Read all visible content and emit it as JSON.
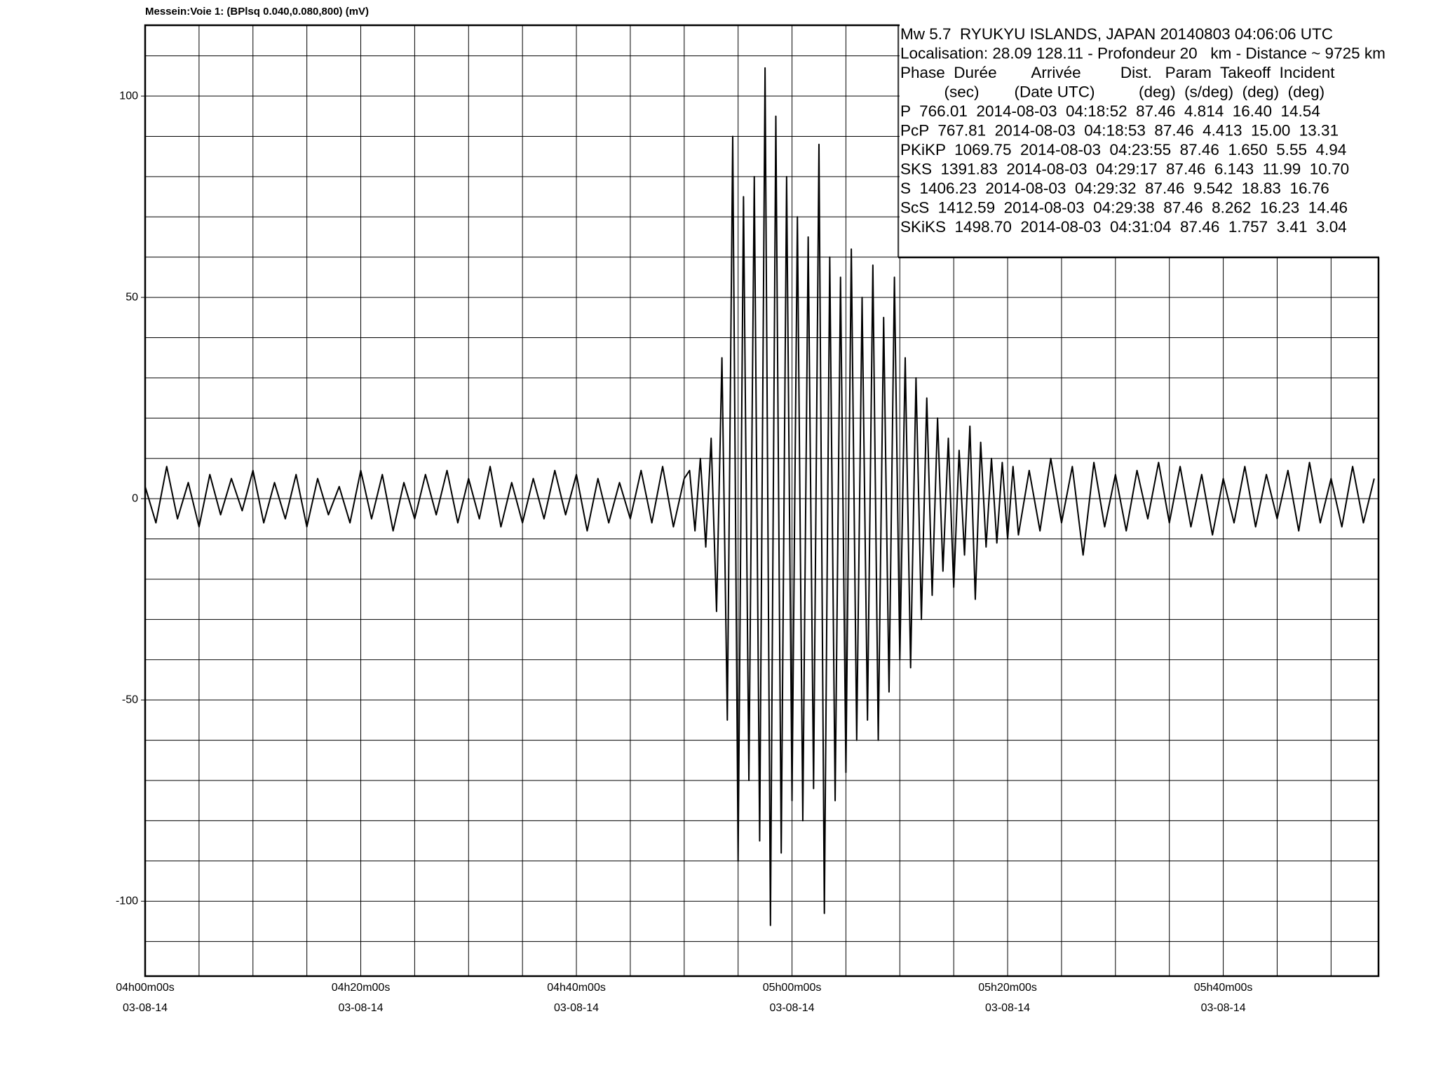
{
  "chart_data": {
    "type": "line",
    "title": "Messein:Voie 1: (BPlsq 0.040,0.080,800) (mV)",
    "annotations": [
      "Mw 5.7  RYUKYU ISLANDS, JAPAN 20140803 04:06:06 UTC",
      "Localisation: 28.09 128.11 - Profondeur 20   km - Distance ~ 9725 km",
      "Phase  Durée        Arrivée         Dist.   Param  Takeoff  Incident",
      "          (sec)        (Date UTC)          (deg)  (s/deg)  (deg)  (deg)",
      "P  766.01  2014-08-03  04:18:52  87.46  4.814  16.40  14.54",
      "PcP  767.81  2014-08-03  04:18:53  87.46  4.413  15.00  13.31",
      "PKiKP  1069.75  2014-08-03  04:23:55  87.46  1.650  5.55  4.94",
      "SKS  1391.83  2014-08-03  04:29:17  87.46  6.143  11.99  10.70",
      "S  1406.23  2014-08-03  04:29:32  87.46  9.542  18.83  16.76",
      "ScS  1412.59  2014-08-03  04:29:38  87.46  8.262  16.23  14.46",
      "SKiKS  1498.70  2014-08-03  04:31:04  87.46  1.757  3.41  3.04"
    ],
    "color": "#000000",
    "x": [
      0,
      1,
      2,
      3,
      4,
      5,
      6,
      7,
      8,
      9,
      10,
      11,
      12,
      13,
      14,
      15,
      16,
      17,
      18,
      19,
      20,
      21,
      22,
      23,
      24,
      25,
      26,
      27,
      28,
      29,
      30,
      31,
      32,
      33,
      34,
      35,
      36,
      37,
      38,
      39,
      40,
      41,
      42,
      43,
      44,
      45,
      46,
      47,
      48,
      49,
      50,
      50.5,
      51,
      51.5,
      52,
      52.5,
      53,
      53.5,
      54,
      54.5,
      55,
      55.5,
      56,
      56.5,
      57,
      57.5,
      58,
      58.5,
      59,
      59.5,
      60,
      60.5,
      61,
      61.5,
      62,
      62.5,
      63,
      63.5,
      64,
      64.5,
      65,
      65.5,
      66,
      66.5,
      67,
      67.5,
      68,
      68.5,
      69,
      69.5,
      70,
      70.5,
      71,
      71.5,
      72,
      72.5,
      73,
      73.5,
      74,
      74.5,
      75,
      75.5,
      76,
      76.5,
      77,
      77.5,
      78,
      78.5,
      79,
      79.5,
      80,
      80.5,
      81,
      82,
      83,
      84,
      85,
      86,
      87,
      88,
      89,
      90,
      91,
      92,
      93,
      94,
      95,
      96,
      97,
      98,
      99,
      100,
      101,
      102,
      103,
      104,
      105,
      106,
      107,
      108,
      109,
      110,
      111,
      112,
      113,
      114
    ],
    "values": [
      3,
      -6,
      8,
      -5,
      4,
      -7,
      6,
      -4,
      5,
      -3,
      7,
      -6,
      4,
      -5,
      6,
      -7,
      5,
      -4,
      3,
      -6,
      7,
      -5,
      6,
      -8,
      4,
      -5,
      6,
      -4,
      7,
      -6,
      5,
      -5,
      8,
      -7,
      4,
      -6,
      5,
      -5,
      7,
      -4,
      6,
      -8,
      5,
      -6,
      4,
      -5,
      7,
      -6,
      8,
      -7,
      5,
      7,
      -8,
      10,
      -12,
      15,
      -28,
      35,
      -55,
      90,
      -90,
      75,
      -70,
      80,
      -85,
      107,
      -106,
      95,
      -88,
      80,
      -75,
      70,
      -80,
      65,
      -72,
      88,
      -103,
      60,
      -75,
      55,
      -68,
      62,
      -60,
      50,
      -55,
      58,
      -60,
      45,
      -48,
      55,
      -40,
      35,
      -42,
      30,
      -30,
      25,
      -24,
      20,
      -18,
      15,
      -22,
      12,
      -14,
      18,
      -25,
      14,
      -12,
      10,
      -11,
      9,
      -10,
      8,
      -9,
      7,
      -8,
      10,
      -6,
      8,
      -14,
      9,
      -7,
      6,
      -8,
      7,
      -5,
      9,
      -6,
      8,
      -7,
      6,
      -9,
      5,
      -6,
      8,
      -7,
      6,
      -5,
      7,
      -8,
      9,
      -6,
      5,
      -7,
      8,
      -6,
      5
    ],
    "xlim": [
      0,
      114.4
    ],
    "xticks": [
      {
        "value": 0,
        "label": "04h00m00s",
        "date": "03-08-14"
      },
      {
        "value": 20,
        "label": "04h20m00s",
        "date": "03-08-14"
      },
      {
        "value": 40,
        "label": "04h40m00s",
        "date": "03-08-14"
      },
      {
        "value": 60,
        "label": "05h00m00s",
        "date": "03-08-14"
      },
      {
        "value": 80,
        "label": "05h20m00s",
        "date": "03-08-14"
      },
      {
        "value": 100,
        "label": "05h40m00s",
        "date": "03-08-14"
      }
    ],
    "xgrid": [
      5,
      10,
      15,
      25,
      30,
      35,
      45,
      50,
      55,
      65,
      70,
      75,
      85,
      90,
      95,
      105,
      110
    ],
    "ylim": [
      -118.6,
      117.6
    ],
    "yticks": [
      -100,
      -50,
      0,
      50,
      100
    ],
    "ygrid": [
      -110,
      -90,
      -80,
      -70,
      -60,
      -40,
      -30,
      -20,
      -10,
      10,
      20,
      30,
      40,
      60,
      70,
      80,
      90,
      110
    ],
    "grid": true
  }
}
